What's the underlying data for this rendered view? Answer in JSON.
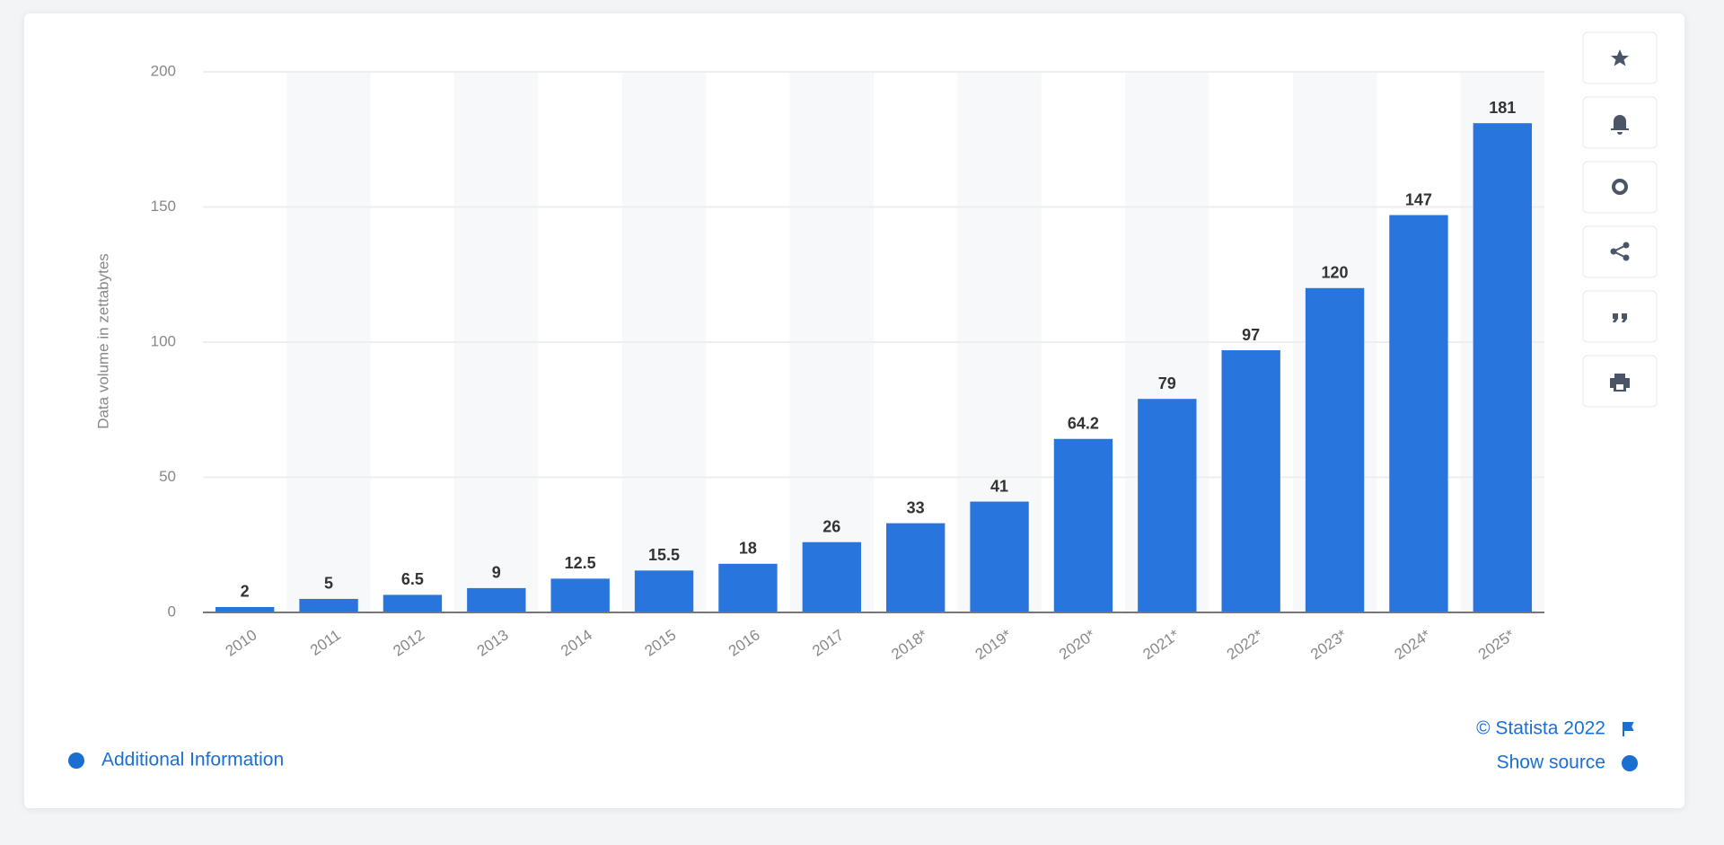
{
  "chart_data": {
    "type": "bar",
    "y_axis_label": "Data volume in zettabytes",
    "categories": [
      "2010",
      "2011",
      "2012",
      "2013",
      "2014",
      "2015",
      "2016",
      "2017",
      "2018*",
      "2019*",
      "2020*",
      "2021*",
      "2022*",
      "2023*",
      "2024*",
      "2025*"
    ],
    "values": [
      2,
      5,
      6.5,
      9,
      12.5,
      15.5,
      18,
      26,
      33,
      41,
      64.2,
      79,
      97,
      120,
      147,
      181
    ],
    "color": "#2876dd",
    "ylim": [
      0,
      200
    ],
    "yticks": [
      0,
      50,
      100,
      150,
      200
    ],
    "grid": true
  },
  "footer": {
    "copyright": "© Statista 2022",
    "show_source": "Show source",
    "additional_information": "Additional Information"
  }
}
